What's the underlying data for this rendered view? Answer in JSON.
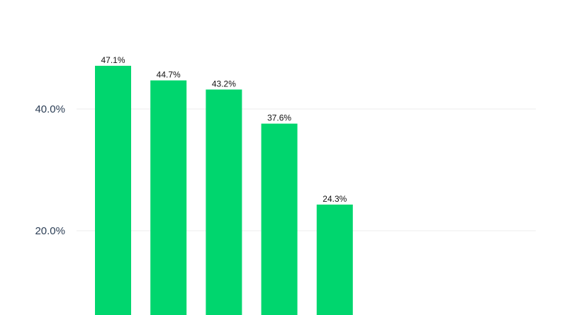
{
  "chart_data": {
    "type": "bar",
    "title": "",
    "xlabel": "",
    "ylabel": "",
    "categories": [
      "",
      "",
      "",
      "",
      ""
    ],
    "values": [
      47.1,
      44.7,
      43.2,
      37.6,
      24.3
    ],
    "value_labels": [
      "47.1%",
      "44.7%",
      "43.2%",
      "37.6%",
      "24.3%"
    ],
    "yticks": [
      {
        "value": 20,
        "label": "20.0%"
      },
      {
        "value": 40,
        "label": "40.0%"
      }
    ],
    "ylim": [
      0,
      50
    ],
    "grid": true,
    "colors": {
      "bar": "#00d66e",
      "grid": "#eeeeee",
      "tick_text": "#2c3e55",
      "label_text": "#111111"
    }
  }
}
